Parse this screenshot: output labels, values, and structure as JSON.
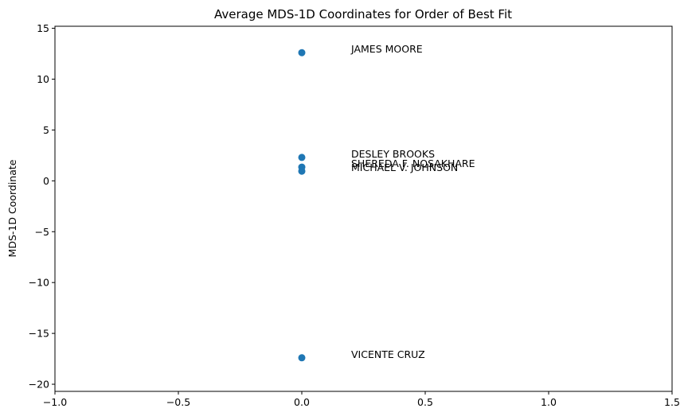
{
  "chart_data": {
    "type": "scatter",
    "title": "Average MDS-1D Coordinates for Order of Best Fit",
    "xlabel": "",
    "ylabel": "MDS-1D Coordinate",
    "xlim": [
      -1.0,
      1.5
    ],
    "ylim": [
      -20.7,
      15.2
    ],
    "xticks": [
      -1.0,
      -0.5,
      0.0,
      0.5,
      1.0,
      1.5
    ],
    "xtick_labels": [
      "−1.0",
      "−0.5",
      "0.0",
      "0.5",
      "1.0",
      "1.5"
    ],
    "yticks": [
      -20,
      -15,
      -10,
      -5,
      0,
      5,
      10,
      15
    ],
    "ytick_labels": [
      "−20",
      "−15",
      "−10",
      "−5",
      "0",
      "5",
      "10",
      "15"
    ],
    "grid": false,
    "marker_color": "#1f77b4",
    "points": [
      {
        "label": "JAMES MOORE",
        "x": 0.0,
        "y": 12.6
      },
      {
        "label": "DESLEY BROOKS",
        "x": 0.0,
        "y": 2.3
      },
      {
        "label": "SHEREDA F. NOSAKHARE",
        "x": 0.0,
        "y": 1.35
      },
      {
        "label": "MICHAEL V. JOHNSON",
        "x": 0.0,
        "y": 0.95
      },
      {
        "label": "VICENTE CRUZ",
        "x": 0.0,
        "y": -17.4
      }
    ]
  }
}
